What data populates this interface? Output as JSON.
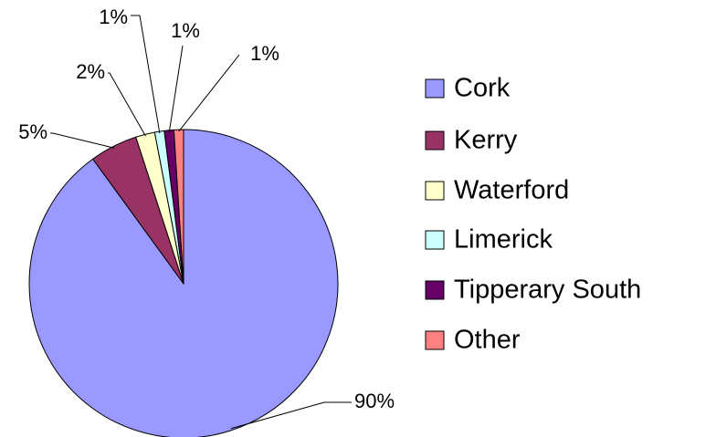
{
  "chart_data": {
    "type": "pie",
    "categories": [
      "Cork",
      "Kerry",
      "Waterford",
      "Limerick",
      "Tipperary South",
      "Other"
    ],
    "values": [
      90,
      5,
      2,
      1,
      1,
      1
    ],
    "value_labels": [
      "90%",
      "5%",
      "2%",
      "1%",
      "1%",
      "1%"
    ],
    "colors": [
      "#9999ff",
      "#993366",
      "#ffffcc",
      "#ccffff",
      "#660066",
      "#ff8080"
    ],
    "legend": "right"
  }
}
